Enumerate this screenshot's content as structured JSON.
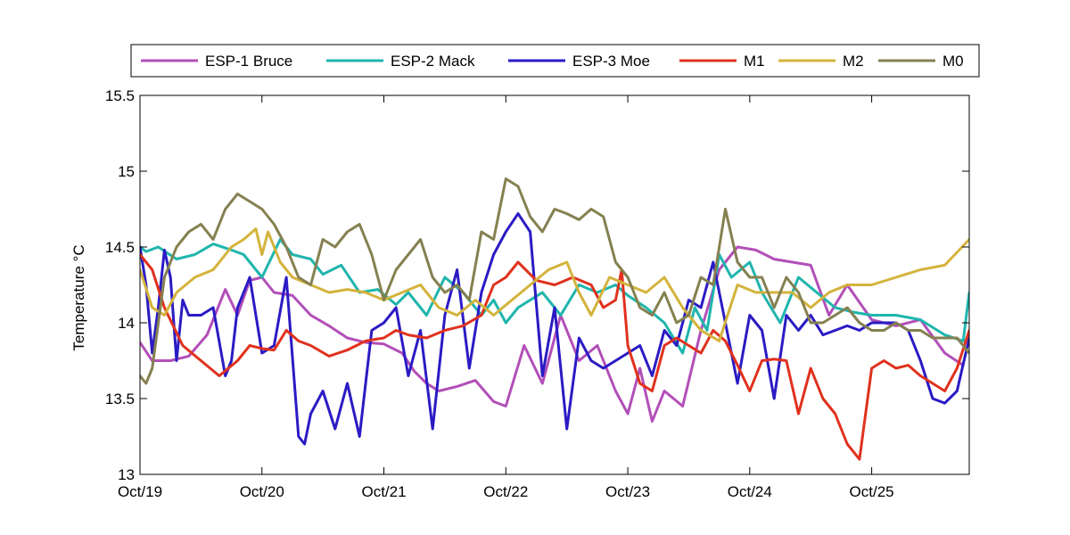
{
  "chart_data": {
    "type": "line",
    "ylabel": "Temperature °C",
    "xlabel": "",
    "ylim": [
      13,
      15.5
    ],
    "xlim": [
      0,
      6.8
    ],
    "x_ticks": [
      {
        "x": 0,
        "label": "Oct/19"
      },
      {
        "x": 1,
        "label": "Oct/20"
      },
      {
        "x": 2,
        "label": "Oct/21"
      },
      {
        "x": 3,
        "label": "Oct/22"
      },
      {
        "x": 4,
        "label": "Oct/23"
      },
      {
        "x": 5,
        "label": "Oct/24"
      },
      {
        "x": 6,
        "label": "Oct/25"
      }
    ],
    "y_ticks": [
      {
        "y": 13,
        "label": "13"
      },
      {
        "y": 13.5,
        "label": "13.5"
      },
      {
        "y": 14,
        "label": "14"
      },
      {
        "y": 14.5,
        "label": "14.5"
      },
      {
        "y": 15,
        "label": "15"
      },
      {
        "y": 15.5,
        "label": "15.5"
      }
    ],
    "grid": false,
    "legend_position": "top",
    "series": [
      {
        "name": "ESP-1 Bruce",
        "color": "#b24fb8",
        "x": [
          0,
          0.1,
          0.25,
          0.4,
          0.55,
          0.7,
          0.8,
          0.9,
          1.0,
          1.1,
          1.25,
          1.4,
          1.55,
          1.7,
          1.85,
          2.0,
          2.15,
          2.25,
          2.35,
          2.45,
          2.6,
          2.75,
          2.9,
          3.0,
          3.15,
          3.3,
          3.45,
          3.6,
          3.75,
          3.9,
          4.0,
          4.1,
          4.2,
          4.3,
          4.45,
          4.6,
          4.75,
          4.9,
          5.05,
          5.2,
          5.35,
          5.5,
          5.65,
          5.8,
          6.0,
          6.2,
          6.4,
          6.6,
          6.75
        ],
        "y": [
          13.87,
          13.75,
          13.75,
          13.78,
          13.92,
          14.22,
          14.05,
          14.28,
          14.3,
          14.2,
          14.18,
          14.05,
          13.98,
          13.9,
          13.87,
          13.86,
          13.8,
          13.68,
          13.6,
          13.55,
          13.58,
          13.62,
          13.48,
          13.45,
          13.85,
          13.6,
          14.05,
          13.75,
          13.85,
          13.55,
          13.4,
          13.7,
          13.35,
          13.55,
          13.45,
          13.95,
          14.35,
          14.5,
          14.48,
          14.42,
          14.4,
          14.38,
          14.05,
          14.25,
          14.02,
          13.98,
          14.02,
          13.8,
          13.72
        ]
      },
      {
        "name": "ESP-2 Mack",
        "color": "#1fb5ad",
        "x": [
          0,
          0.05,
          0.15,
          0.3,
          0.45,
          0.6,
          0.75,
          0.85,
          1.0,
          1.15,
          1.25,
          1.4,
          1.5,
          1.65,
          1.8,
          1.95,
          2.1,
          2.2,
          2.35,
          2.5,
          2.65,
          2.8,
          2.9,
          3.0,
          3.1,
          3.2,
          3.3,
          3.45,
          3.6,
          3.75,
          3.9,
          4.0,
          4.15,
          4.3,
          4.45,
          4.55,
          4.65,
          4.75,
          4.85,
          5.0,
          5.1,
          5.25,
          5.4,
          5.55,
          5.7,
          5.85,
          6.0,
          6.2,
          6.4,
          6.6,
          6.75,
          6.8
        ],
        "y": [
          14.5,
          14.47,
          14.5,
          14.42,
          14.45,
          14.52,
          14.48,
          14.45,
          14.3,
          14.55,
          14.45,
          14.42,
          14.32,
          14.38,
          14.2,
          14.22,
          14.12,
          14.2,
          14.05,
          14.3,
          14.2,
          14.05,
          14.15,
          14.0,
          14.1,
          14.15,
          14.2,
          14.05,
          14.25,
          14.2,
          14.25,
          14.18,
          14.1,
          14.0,
          13.8,
          14.1,
          13.95,
          14.45,
          14.3,
          14.4,
          14.2,
          14.0,
          14.3,
          14.2,
          14.1,
          14.07,
          14.05,
          14.05,
          14.02,
          13.92,
          13.88,
          14.2
        ]
      },
      {
        "name": "ESP-3 Moe",
        "color": "#2a1bc4",
        "x": [
          0,
          0.05,
          0.1,
          0.15,
          0.2,
          0.25,
          0.3,
          0.35,
          0.4,
          0.5,
          0.6,
          0.7,
          0.75,
          0.8,
          0.9,
          1.0,
          1.1,
          1.2,
          1.3,
          1.35,
          1.4,
          1.5,
          1.6,
          1.7,
          1.8,
          1.9,
          2.0,
          2.1,
          2.2,
          2.3,
          2.4,
          2.5,
          2.6,
          2.7,
          2.8,
          2.9,
          3.0,
          3.1,
          3.2,
          3.3,
          3.4,
          3.5,
          3.6,
          3.7,
          3.8,
          3.9,
          4.0,
          4.1,
          4.2,
          4.3,
          4.4,
          4.5,
          4.6,
          4.7,
          4.8,
          4.9,
          5.0,
          5.1,
          5.2,
          5.3,
          5.4,
          5.5,
          5.6,
          5.7,
          5.8,
          5.9,
          6.0,
          6.1,
          6.2,
          6.3,
          6.4,
          6.5,
          6.6,
          6.7,
          6.8
        ],
        "y": [
          14.5,
          14.25,
          13.8,
          14.1,
          14.48,
          14.3,
          13.75,
          14.15,
          14.05,
          14.05,
          14.1,
          13.65,
          13.75,
          14.1,
          14.3,
          13.8,
          13.85,
          14.3,
          13.25,
          13.2,
          13.4,
          13.55,
          13.3,
          13.6,
          13.25,
          13.95,
          14.0,
          14.1,
          13.65,
          13.95,
          13.3,
          14.05,
          14.35,
          13.7,
          14.2,
          14.45,
          14.6,
          14.72,
          14.6,
          13.65,
          14.1,
          13.3,
          13.9,
          13.75,
          13.7,
          13.75,
          13.8,
          13.85,
          13.65,
          13.95,
          13.85,
          14.15,
          14.1,
          14.4,
          14.0,
          13.6,
          14.05,
          13.95,
          13.5,
          14.05,
          13.95,
          14.05,
          13.92,
          13.95,
          13.98,
          13.95,
          14.0,
          14.0,
          14.0,
          13.95,
          13.75,
          13.5,
          13.47,
          13.55,
          13.9
        ]
      },
      {
        "name": "M1",
        "color": "#e0311e",
        "x": [
          0,
          0.1,
          0.2,
          0.35,
          0.5,
          0.65,
          0.8,
          0.9,
          1.0,
          1.1,
          1.2,
          1.3,
          1.4,
          1.55,
          1.7,
          1.85,
          2.0,
          2.1,
          2.2,
          2.35,
          2.5,
          2.65,
          2.8,
          2.9,
          3.0,
          3.1,
          3.25,
          3.4,
          3.55,
          3.7,
          3.8,
          3.9,
          3.95,
          4.0,
          4.1,
          4.2,
          4.3,
          4.4,
          4.5,
          4.6,
          4.7,
          4.8,
          4.9,
          5.0,
          5.1,
          5.2,
          5.3,
          5.4,
          5.5,
          5.6,
          5.7,
          5.8,
          5.9,
          6.0,
          6.1,
          6.2,
          6.3,
          6.4,
          6.5,
          6.6,
          6.7,
          6.8
        ],
        "y": [
          14.45,
          14.35,
          14.1,
          13.85,
          13.75,
          13.65,
          13.75,
          13.85,
          13.83,
          13.82,
          13.95,
          13.88,
          13.85,
          13.78,
          13.82,
          13.88,
          13.9,
          13.95,
          13.92,
          13.9,
          13.95,
          13.98,
          14.05,
          14.25,
          14.3,
          14.4,
          14.28,
          14.25,
          14.3,
          14.25,
          14.1,
          14.15,
          14.35,
          13.85,
          13.6,
          13.55,
          13.85,
          13.9,
          13.85,
          13.8,
          13.95,
          13.88,
          13.72,
          13.55,
          13.75,
          13.76,
          13.75,
          13.4,
          13.7,
          13.5,
          13.4,
          13.2,
          13.1,
          13.7,
          13.75,
          13.7,
          13.72,
          13.65,
          13.6,
          13.55,
          13.7,
          13.95
        ]
      },
      {
        "name": "M2",
        "color": "#d4b33c",
        "x": [
          0,
          0.1,
          0.2,
          0.3,
          0.45,
          0.6,
          0.75,
          0.85,
          0.95,
          1.0,
          1.05,
          1.15,
          1.25,
          1.4,
          1.55,
          1.7,
          1.85,
          2.0,
          2.15,
          2.3,
          2.45,
          2.6,
          2.75,
          2.9,
          3.05,
          3.2,
          3.35,
          3.5,
          3.6,
          3.7,
          3.85,
          4.0,
          4.15,
          4.3,
          4.45,
          4.6,
          4.75,
          4.9,
          5.05,
          5.2,
          5.35,
          5.5,
          5.65,
          5.8,
          6.0,
          6.2,
          6.4,
          6.6,
          6.8
        ],
        "y": [
          14.35,
          14.1,
          14.05,
          14.2,
          14.3,
          14.35,
          14.5,
          14.55,
          14.62,
          14.45,
          14.6,
          14.4,
          14.3,
          14.25,
          14.2,
          14.22,
          14.2,
          14.15,
          14.2,
          14.25,
          14.1,
          14.05,
          14.15,
          14.05,
          14.15,
          14.25,
          14.35,
          14.4,
          14.2,
          14.05,
          14.3,
          14.25,
          14.2,
          14.3,
          14.1,
          13.95,
          13.88,
          14.25,
          14.2,
          14.2,
          14.2,
          14.1,
          14.2,
          14.25,
          14.25,
          14.3,
          14.35,
          14.38,
          14.55
        ]
      },
      {
        "name": "M0",
        "color": "#858050",
        "x": [
          0,
          0.05,
          0.1,
          0.2,
          0.3,
          0.4,
          0.5,
          0.6,
          0.7,
          0.8,
          0.9,
          1.0,
          1.1,
          1.2,
          1.3,
          1.4,
          1.5,
          1.6,
          1.7,
          1.8,
          1.9,
          2.0,
          2.1,
          2.2,
          2.3,
          2.4,
          2.5,
          2.6,
          2.7,
          2.8,
          2.9,
          3.0,
          3.1,
          3.2,
          3.3,
          3.4,
          3.5,
          3.6,
          3.7,
          3.8,
          3.9,
          4.0,
          4.1,
          4.2,
          4.3,
          4.4,
          4.5,
          4.6,
          4.7,
          4.8,
          4.9,
          5.0,
          5.1,
          5.2,
          5.3,
          5.4,
          5.5,
          5.6,
          5.7,
          5.8,
          5.9,
          6.0,
          6.1,
          6.2,
          6.3,
          6.4,
          6.5,
          6.6,
          6.7,
          6.8
        ],
        "y": [
          13.65,
          13.6,
          13.7,
          14.3,
          14.5,
          14.6,
          14.65,
          14.55,
          14.75,
          14.85,
          14.8,
          14.75,
          14.65,
          14.5,
          14.3,
          14.25,
          14.55,
          14.5,
          14.6,
          14.65,
          14.45,
          14.15,
          14.35,
          14.45,
          14.55,
          14.3,
          14.2,
          14.25,
          14.15,
          14.6,
          14.55,
          14.95,
          14.9,
          14.7,
          14.6,
          14.75,
          14.72,
          14.68,
          14.75,
          14.7,
          14.4,
          14.3,
          14.1,
          14.05,
          14.2,
          14.0,
          14.05,
          14.3,
          14.25,
          14.75,
          14.4,
          14.3,
          14.3,
          14.1,
          14.3,
          14.2,
          14.0,
          14.0,
          14.05,
          14.1,
          14.0,
          13.95,
          13.95,
          14.0,
          13.95,
          13.95,
          13.9,
          13.9,
          13.9,
          13.8
        ]
      }
    ]
  }
}
